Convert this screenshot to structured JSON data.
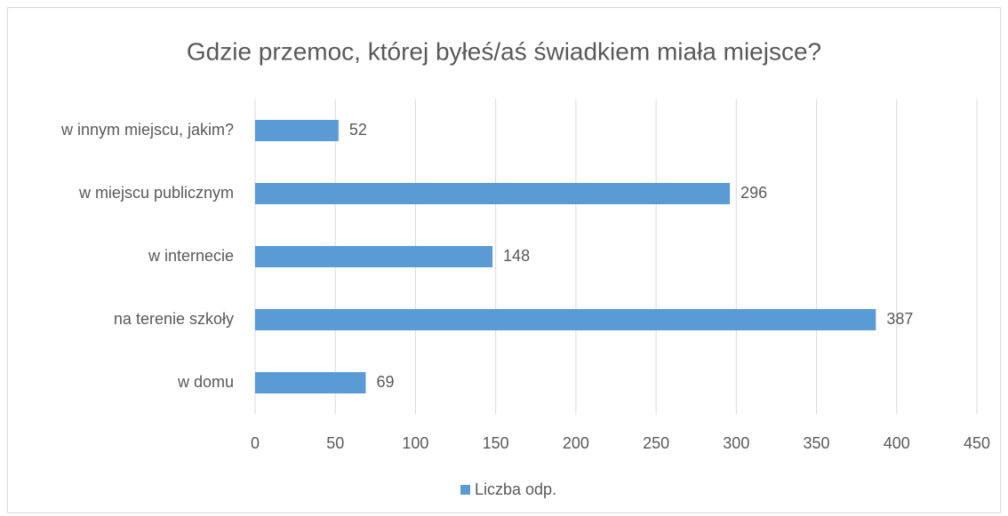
{
  "chart_data": {
    "type": "bar",
    "orientation": "horizontal",
    "title": "Gdzie przemoc, której byłeś/aś świadkiem miała miejsce?",
    "categories": [
      "w innym miejscu, jakim?",
      "w miejscu publicznym",
      "w internecie",
      "na terenie szkoły",
      "w domu"
    ],
    "series": [
      {
        "name": "Liczba odp.",
        "color": "#5b9bd5",
        "values": [
          52,
          296,
          148,
          387,
          69
        ]
      }
    ],
    "xlim": [
      0,
      450
    ],
    "xticks": [
      0,
      50,
      100,
      150,
      200,
      250,
      300,
      350,
      400,
      450
    ],
    "grid": true,
    "legend": "bottom"
  }
}
